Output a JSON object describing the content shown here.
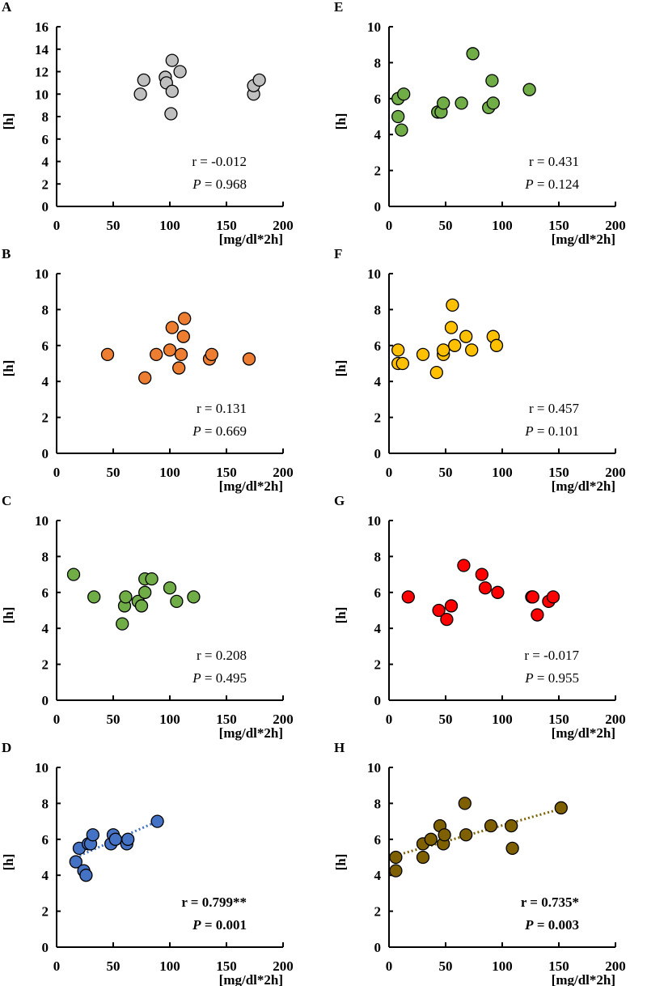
{
  "chart_data": [
    {
      "type": "scatter",
      "panel": "A",
      "color": "#bfbfbf",
      "ylabel": "[h]",
      "xlabel": "[mg/dl*2h]",
      "xlim": [
        0,
        200
      ],
      "ylim": [
        0,
        16
      ],
      "xticks": [
        0,
        50,
        100,
        150,
        200
      ],
      "yticks": [
        0,
        2,
        4,
        6,
        8,
        10,
        12,
        14,
        16
      ],
      "points": [
        [
          74,
          10
        ],
        [
          77,
          11.25
        ],
        [
          96,
          11.5
        ],
        [
          97,
          11
        ],
        [
          102,
          13
        ],
        [
          102,
          10.25
        ],
        [
          101,
          8.25
        ],
        [
          109,
          12
        ],
        [
          174,
          10
        ],
        [
          174,
          10.75
        ],
        [
          179,
          11.25
        ]
      ],
      "r": "r = -0.012",
      "p_label": "P",
      "p_value": " = 0.968",
      "bold": false,
      "trend": null
    },
    {
      "type": "scatter",
      "panel": "B",
      "color": "#ed7d31",
      "ylabel": "[h]",
      "xlabel": "[mg/dl*2h]",
      "xlim": [
        0,
        200
      ],
      "ylim": [
        0,
        10
      ],
      "xticks": [
        0,
        50,
        100,
        150,
        200
      ],
      "yticks": [
        0,
        2,
        4,
        6,
        8,
        10
      ],
      "points": [
        [
          45,
          5.5
        ],
        [
          78,
          4.2
        ],
        [
          88,
          5.5
        ],
        [
          100,
          5.75
        ],
        [
          102,
          7
        ],
        [
          108,
          4.75
        ],
        [
          110,
          5.5
        ],
        [
          112,
          6.5
        ],
        [
          113,
          7.5
        ],
        [
          135,
          5.25
        ],
        [
          137,
          5.5
        ],
        [
          170,
          5.25
        ]
      ],
      "r": "r = 0.131",
      "p_label": "P",
      "p_value": " = 0.669",
      "bold": false,
      "trend": null
    },
    {
      "type": "scatter",
      "panel": "C",
      "color": "#70ad47",
      "ylabel": "[h]",
      "xlabel": "[mg/dl*2h]",
      "xlim": [
        0,
        200
      ],
      "ylim": [
        0,
        10
      ],
      "xticks": [
        0,
        50,
        100,
        150,
        200
      ],
      "yticks": [
        0,
        2,
        4,
        6,
        8,
        10
      ],
      "points": [
        [
          15,
          7
        ],
        [
          33,
          5.75
        ],
        [
          58,
          4.25
        ],
        [
          60,
          5.25
        ],
        [
          61,
          5.75
        ],
        [
          72,
          5.5
        ],
        [
          75,
          5.25
        ],
        [
          78,
          6
        ],
        [
          78,
          6.75
        ],
        [
          84,
          6.75
        ],
        [
          100,
          6.25
        ],
        [
          106,
          5.5
        ],
        [
          121,
          5.75
        ]
      ],
      "r": "r = 0.208",
      "p_label": "P",
      "p_value": " = 0.495",
      "bold": false,
      "trend": null
    },
    {
      "type": "scatter",
      "panel": "D",
      "color": "#4472c4",
      "ylabel": "[h]",
      "xlabel": "[mg/dl*2h]",
      "xlim": [
        0,
        200
      ],
      "ylim": [
        0,
        10
      ],
      "xticks": [
        0,
        50,
        100,
        150,
        200
      ],
      "yticks": [
        0,
        2,
        4,
        6,
        8,
        10
      ],
      "points": [
        [
          17,
          4.75
        ],
        [
          20,
          5.5
        ],
        [
          24,
          4.25
        ],
        [
          26,
          4
        ],
        [
          28,
          5.75
        ],
        [
          30,
          5.75
        ],
        [
          32,
          6.25
        ],
        [
          48,
          5.75
        ],
        [
          50,
          6.25
        ],
        [
          52,
          6
        ],
        [
          62,
          5.75
        ],
        [
          63,
          6
        ],
        [
          89,
          7
        ]
      ],
      "r": "r = 0.799**",
      "p_label": "P",
      "p_value": " = 0.001",
      "bold": true,
      "trend": [
        [
          17,
          5.0
        ],
        [
          89,
          7.0
        ]
      ]
    },
    {
      "type": "scatter",
      "panel": "E",
      "color": "#70ad47",
      "ylabel": "[h]",
      "xlabel": "[mg/dl*2h]",
      "xlim": [
        0,
        200
      ],
      "ylim": [
        0,
        10
      ],
      "xticks": [
        0,
        50,
        100,
        150,
        200
      ],
      "yticks": [
        0,
        2,
        4,
        6,
        8,
        10
      ],
      "points": [
        [
          8,
          6
        ],
        [
          8,
          5
        ],
        [
          13,
          6.25
        ],
        [
          11,
          4.25
        ],
        [
          43,
          5.25
        ],
        [
          46,
          5.25
        ],
        [
          48,
          5.75
        ],
        [
          64,
          5.75
        ],
        [
          74,
          8.5
        ],
        [
          88,
          5.5
        ],
        [
          91,
          7
        ],
        [
          92,
          5.75
        ],
        [
          124,
          6.5
        ]
      ],
      "r": "r = 0.431",
      "p_label": "P",
      "p_value": " = 0.124",
      "bold": false,
      "trend": null
    },
    {
      "type": "scatter",
      "panel": "F",
      "color": "#ffc000",
      "ylabel": "[h]",
      "xlabel": "[mg/dl*2h]",
      "xlim": [
        0,
        200
      ],
      "ylim": [
        0,
        10
      ],
      "xticks": [
        0,
        50,
        100,
        150,
        200
      ],
      "yticks": [
        0,
        2,
        4,
        6,
        8,
        10
      ],
      "points": [
        [
          8,
          5.75
        ],
        [
          8,
          5
        ],
        [
          12,
          5
        ],
        [
          30,
          5.5
        ],
        [
          42,
          4.5
        ],
        [
          48,
          5.5
        ],
        [
          48,
          5.75
        ],
        [
          55,
          7
        ],
        [
          56,
          8.25
        ],
        [
          58,
          6
        ],
        [
          68,
          6.5
        ],
        [
          73,
          5.75
        ],
        [
          92,
          6.5
        ],
        [
          95,
          6
        ]
      ],
      "r": "r = 0.457",
      "p_label": "P",
      "p_value": " = 0.101",
      "bold": false,
      "trend": null
    },
    {
      "type": "scatter",
      "panel": "G",
      "color": "#ff0000",
      "ylabel": "[h]",
      "xlabel": "[mg/dl*2h]",
      "xlim": [
        0,
        200
      ],
      "ylim": [
        0,
        10
      ],
      "xticks": [
        0,
        50,
        100,
        150,
        200
      ],
      "yticks": [
        0,
        2,
        4,
        6,
        8,
        10
      ],
      "points": [
        [
          17,
          5.75
        ],
        [
          44,
          5
        ],
        [
          51,
          4.5
        ],
        [
          55,
          5.25
        ],
        [
          66,
          7.5
        ],
        [
          82,
          7
        ],
        [
          85,
          6.25
        ],
        [
          96,
          6
        ],
        [
          126,
          5.75
        ],
        [
          127,
          5.75
        ],
        [
          131,
          4.75
        ],
        [
          141,
          5.5
        ],
        [
          145,
          5.75
        ]
      ],
      "r": "r = -0.017",
      "p_label": "P",
      "p_value": " = 0.955",
      "bold": false,
      "trend": null
    },
    {
      "type": "scatter",
      "panel": "H",
      "color": "#7f6000",
      "ylabel": "[h]",
      "xlabel": "[mg/dl*2h]",
      "xlim": [
        0,
        200
      ],
      "ylim": [
        0,
        10
      ],
      "xticks": [
        0,
        50,
        100,
        150,
        200
      ],
      "yticks": [
        0,
        2,
        4,
        6,
        8,
        10
      ],
      "points": [
        [
          6,
          5
        ],
        [
          6,
          4.25
        ],
        [
          30,
          5
        ],
        [
          30,
          5.75
        ],
        [
          37,
          6
        ],
        [
          45,
          6.75
        ],
        [
          48,
          5.75
        ],
        [
          49,
          6.25
        ],
        [
          67,
          8
        ],
        [
          68,
          6.25
        ],
        [
          90,
          6.75
        ],
        [
          108,
          6.75
        ],
        [
          109,
          5.5
        ],
        [
          152,
          7.75
        ]
      ],
      "r": "r = 0.735*",
      "p_label": "P",
      "p_value": " = 0.003",
      "bold": true,
      "trend": [
        [
          6,
          5.1
        ],
        [
          152,
          7.7
        ]
      ]
    }
  ]
}
